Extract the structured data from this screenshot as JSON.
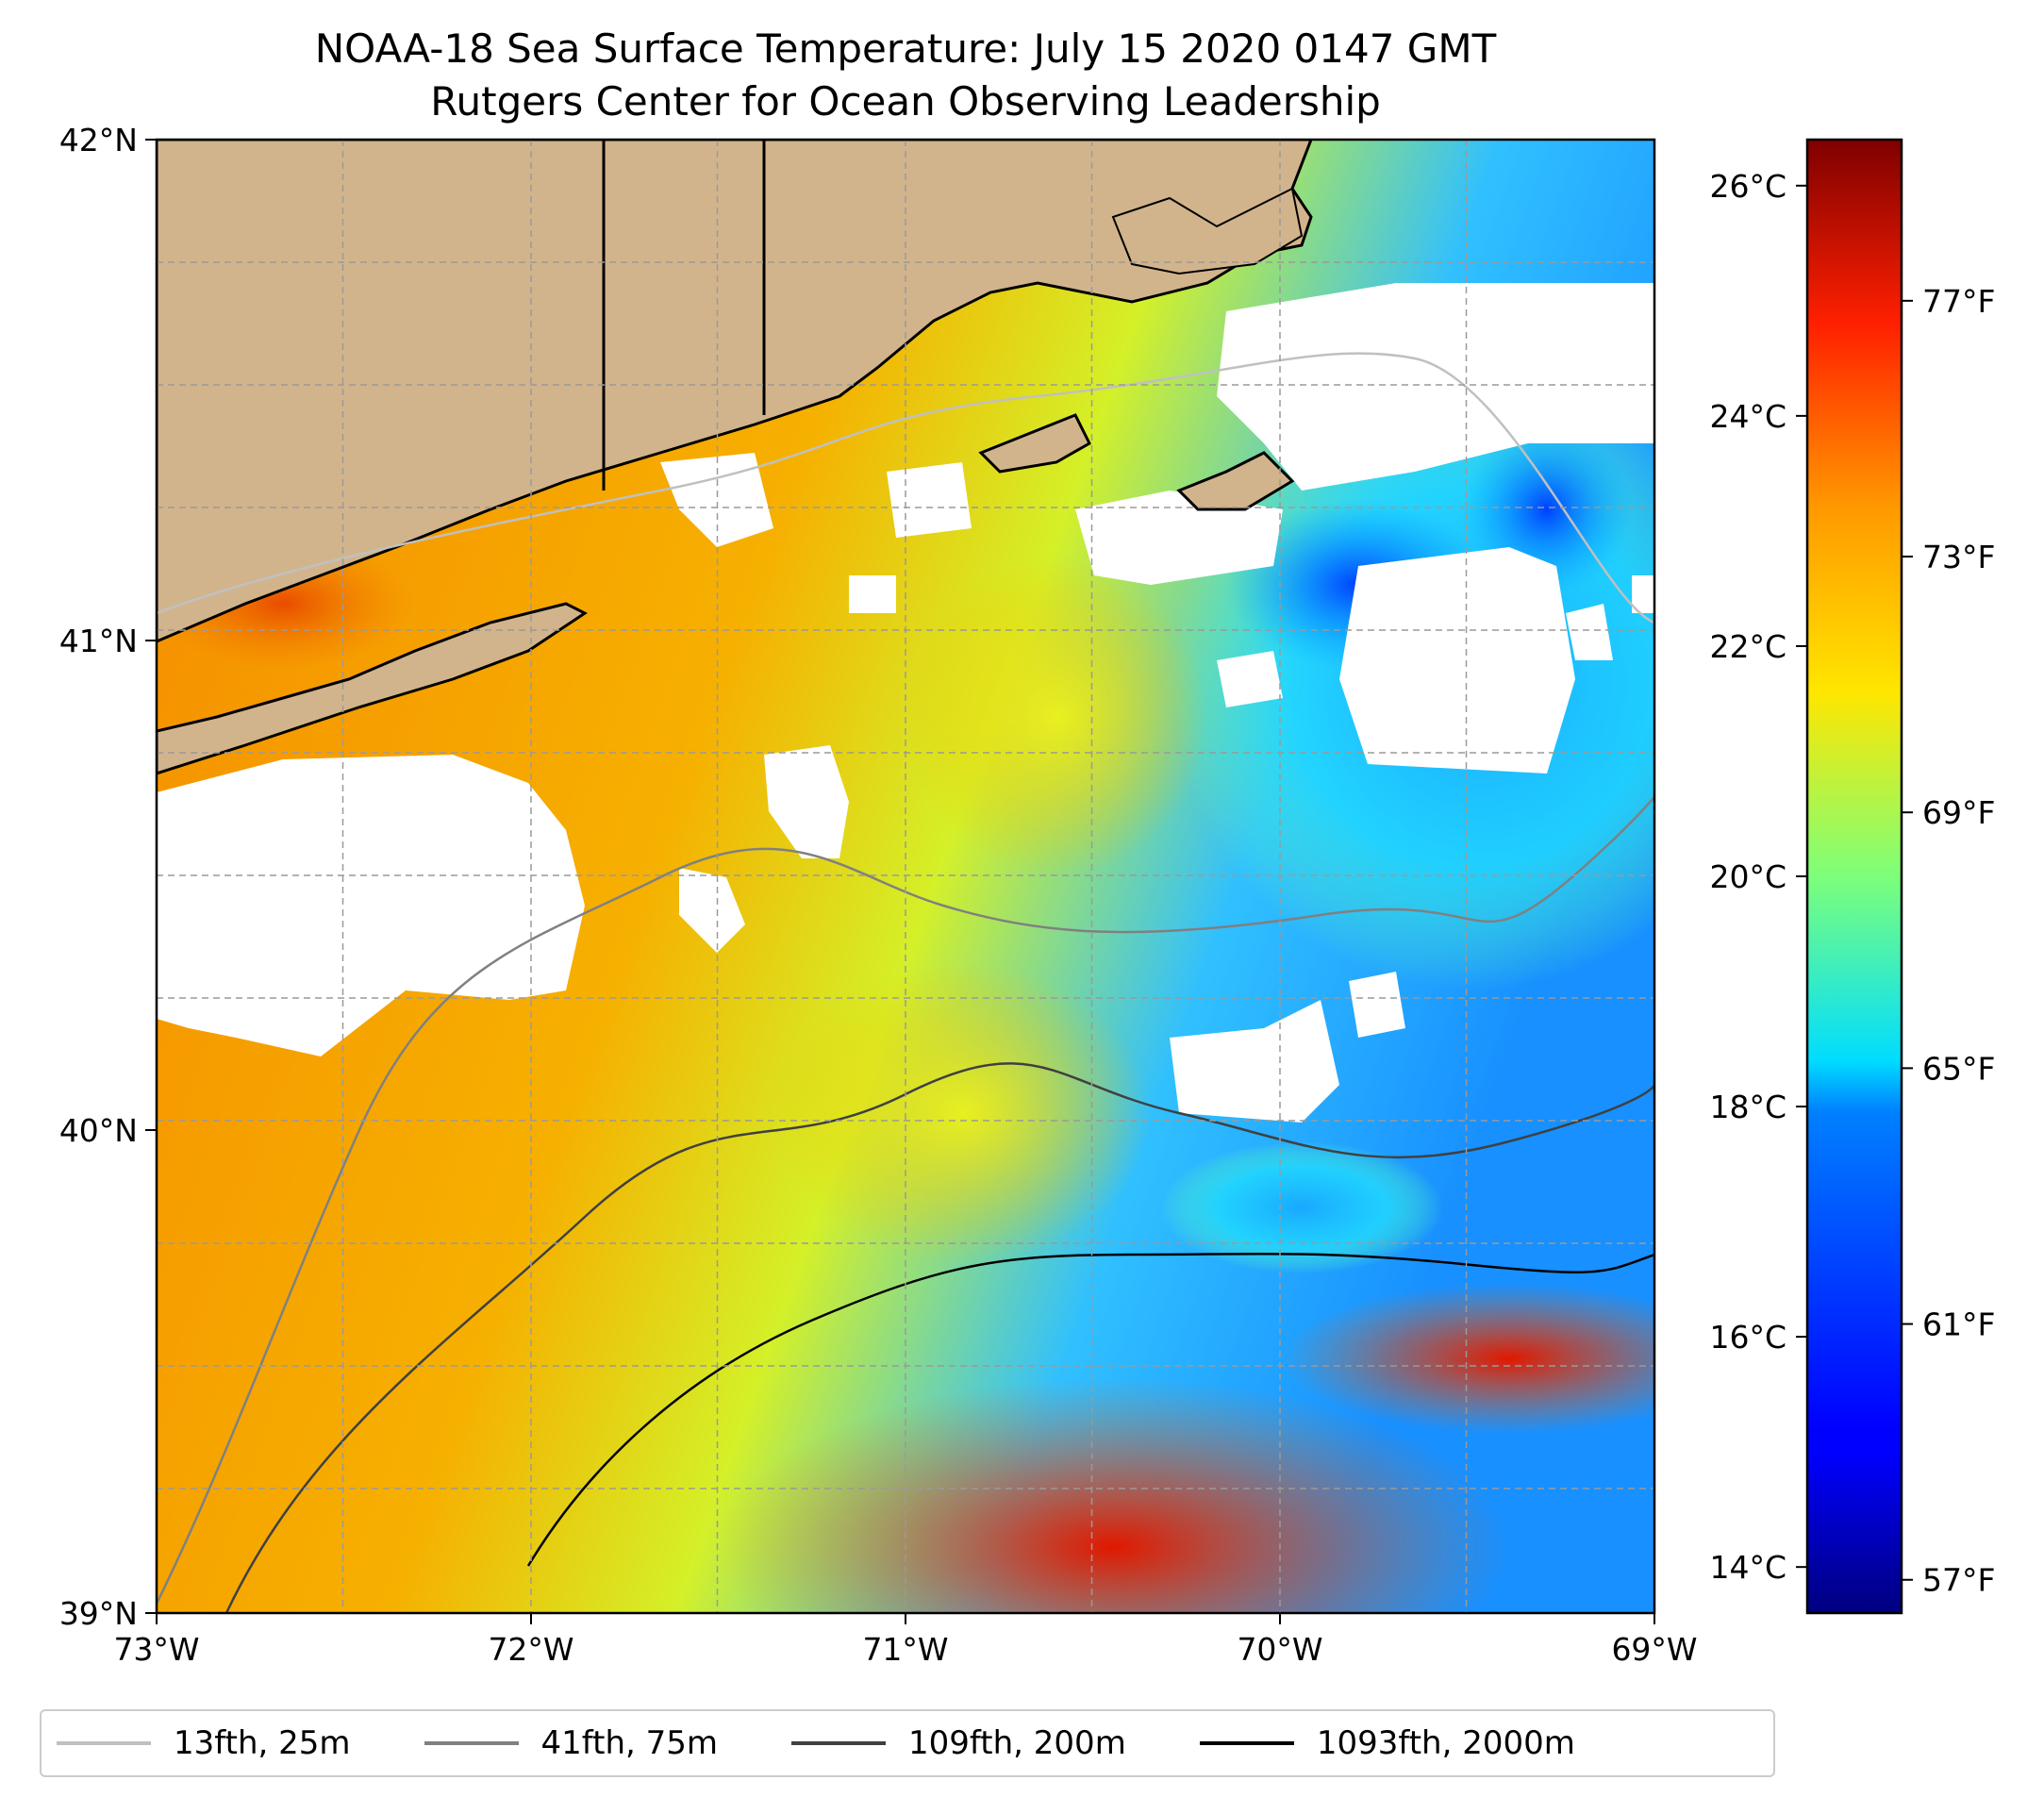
{
  "title": {
    "line1": "NOAA-18 Sea Surface Temperature: July 15 2020 0147 GMT",
    "line2": "Rutgers Center for Ocean Observing Leadership"
  },
  "map": {
    "lon_range": [
      -73,
      -69
    ],
    "lat_range": [
      39,
      42
    ],
    "lon_ticks": [
      "73°W",
      "72°W",
      "71°W",
      "70°W",
      "69°W"
    ],
    "lat_ticks": [
      "42°N",
      "41°N",
      "40°N",
      "39°N"
    ],
    "colors": {
      "land": "#d2b48c",
      "cloud": "#ffffff",
      "coast": "#000000"
    }
  },
  "colorbar": {
    "celsius_ticks": [
      "26°C",
      "24°C",
      "22°C",
      "20°C",
      "18°C",
      "16°C",
      "14°C"
    ],
    "celsius_values": [
      26,
      24,
      22,
      20,
      18,
      16,
      14
    ],
    "fahrenheit_ticks": [
      "77°F",
      "73°F",
      "69°F",
      "65°F",
      "61°F",
      "57°F"
    ],
    "fahrenheit_values": [
      77,
      73,
      69,
      65,
      61,
      57
    ],
    "range_c": [
      13.6,
      26.4
    ],
    "colormap": "jet"
  },
  "legend": [
    {
      "label": "13fth, 25m",
      "color": "#c0c0c0"
    },
    {
      "label": "41fth, 75m",
      "color": "#808080"
    },
    {
      "label": "109fth, 200m",
      "color": "#404040"
    },
    {
      "label": "1093fth, 2000m",
      "color": "#000000"
    }
  ]
}
